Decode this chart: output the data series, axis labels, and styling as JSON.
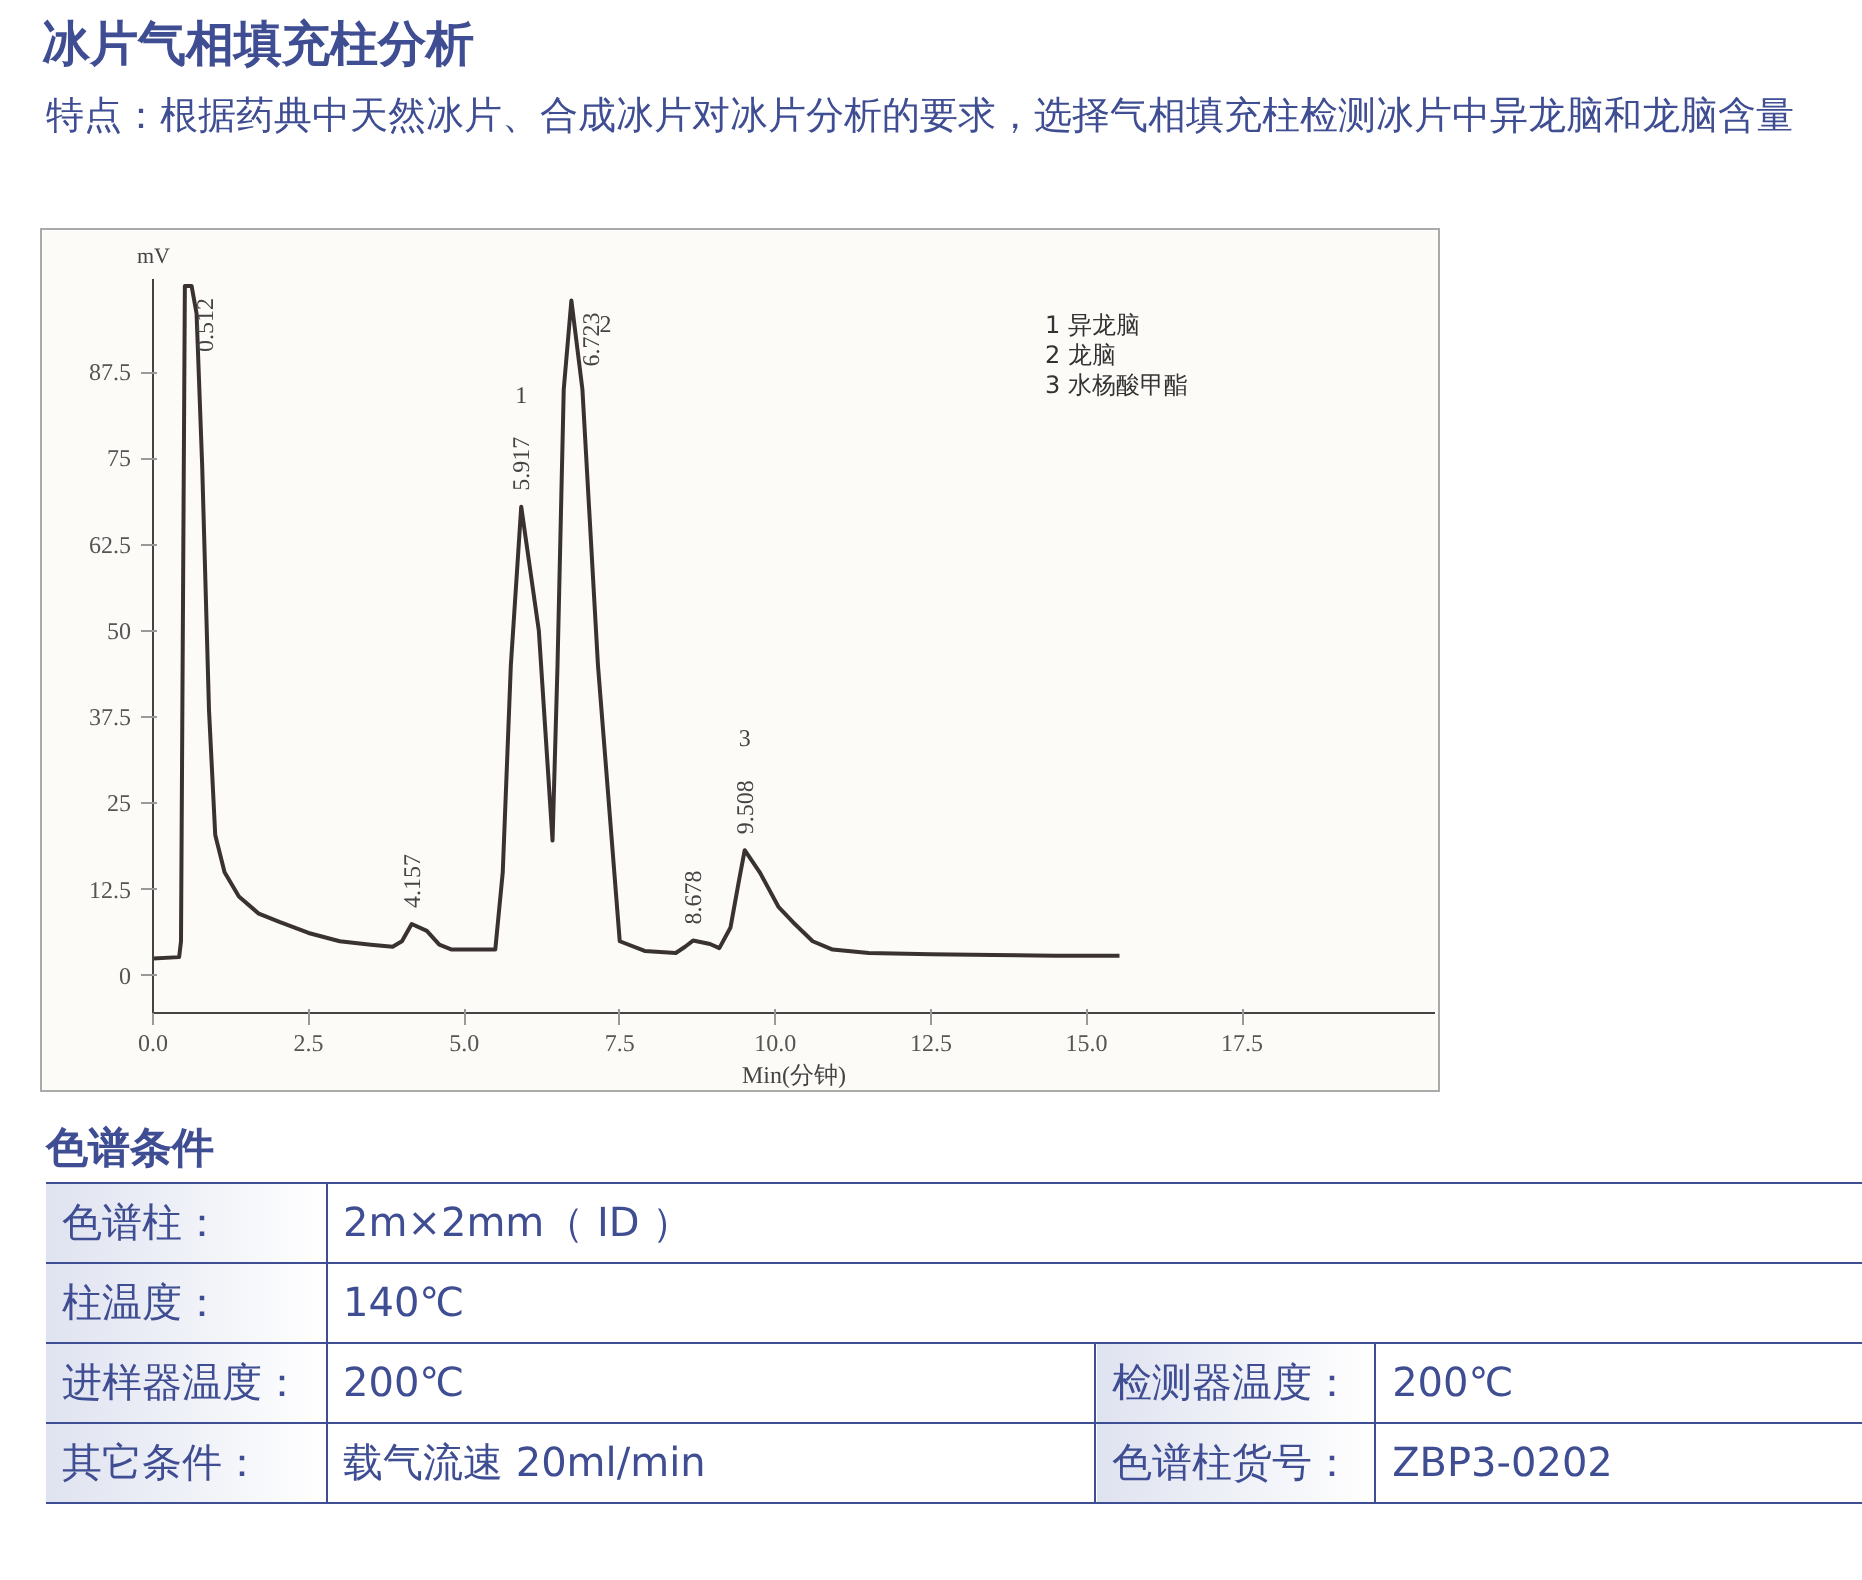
{
  "chart_data": {
    "type": "line",
    "title": "冰片气相填充柱分析",
    "subtitle": "特点：根据药典中天然冰片、合成冰片对冰片分析的要求，选择气相填充柱检测冰片中异龙脑和龙脑含量",
    "xlabel": "Min(分钟)",
    "ylabel": "mV",
    "x": [
      0,
      0.42,
      0.45,
      0.512,
      0.56,
      0.62,
      0.7,
      0.79,
      0.9,
      1.0,
      1.15,
      1.38,
      1.7,
      2.03,
      2.5,
      3.0,
      3.5,
      3.85,
      4.0,
      4.157,
      4.4,
      4.6,
      4.8,
      5.2,
      5.5,
      5.62,
      5.75,
      5.917,
      6.2,
      6.42,
      6.5,
      6.6,
      6.723,
      6.9,
      7.15,
      7.5,
      7.9,
      8.4,
      8.55,
      8.678,
      8.95,
      9.1,
      9.28,
      9.42,
      9.508,
      9.75,
      10.05,
      10.28,
      10.6,
      10.92,
      11.5,
      12.5,
      13.5,
      14.5,
      15.53
    ],
    "series": [
      {
        "color": "#3a3232",
        "values": [
          2.5,
          2.7,
          5,
          100,
          100,
          100,
          96,
          74,
          38.5,
          20.4,
          15,
          11.5,
          9,
          7.8,
          6.2,
          5,
          4.5,
          4.2,
          5,
          7.5,
          6.5,
          4.5,
          3.8,
          3.8,
          3.8,
          15,
          45,
          68,
          50,
          19.6,
          45,
          85,
          97.9,
          85,
          45,
          5,
          3.6,
          3.3,
          4.2,
          5.1,
          4.6,
          4.0,
          7,
          14,
          18.2,
          15,
          10,
          7.8,
          5,
          3.8,
          3.3,
          3.1,
          3.0,
          2.9,
          2.9
        ]
      }
    ],
    "xlim": [
      0,
      20.6
    ],
    "ylim": [
      -5.4,
      101
    ],
    "xticks": [
      {
        "value": 0,
        "label": "0.0"
      },
      2.5,
      {
        "value": 5,
        "label": "5.0"
      },
      7.5,
      {
        "value": 10,
        "label": "10.0"
      },
      12.5,
      {
        "value": 15,
        "label": "15.0"
      },
      17.5
    ],
    "yticks": [
      0,
      12.5,
      25,
      37.5,
      50,
      62.5,
      75,
      87.5
    ],
    "grid": false,
    "marker": "none",
    "line_style": "solid",
    "annotations": [
      "1  异龙脑",
      "2  龙脑",
      "3  水杨酸甲酯",
      "色谱条件",
      "色谱柱：",
      "2m×2mm（ ID ）",
      "柱温度：",
      "140℃",
      "进样器温度：",
      "200℃",
      "检测器温度：",
      "200℃",
      "其它条件：",
      "载气流速 20ml/min",
      "色谱柱货号：",
      "ZBP3-0202",
      {
        "text": "0.512",
        "x": 0.512,
        "y": 100
      },
      {
        "text": "4.157",
        "x": 4.157,
        "y": 7.5
      },
      {
        "text": "5.917",
        "x": 5.917,
        "y": 68
      },
      {
        "text": "6.723",
        "x": 6.723,
        "y": 97.9
      },
      {
        "text": "8.678",
        "x": 8.678,
        "y": 5.1
      },
      {
        "text": "9.508",
        "x": 9.508,
        "y": 18.2
      },
      "1",
      "2",
      "3"
    ]
  }
}
